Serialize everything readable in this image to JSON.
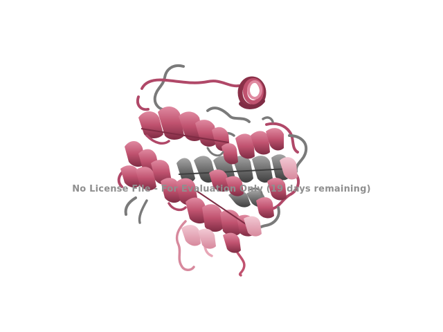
{
  "viewer": {
    "watermark_text": "No License File - For Evaluation Only (19 days remaining)"
  },
  "colors": {
    "background": "#ffffff",
    "helix_pink": "#c0526f",
    "helix_pink_dark": "#8a3048",
    "helix_pink_light": "#e7a6b6",
    "helix_gray": "#6f6f6f",
    "helix_gray_dark": "#4a4a4a",
    "loop_gray": "#7a7a7a",
    "watermark_gray": "#8f8f8f"
  }
}
